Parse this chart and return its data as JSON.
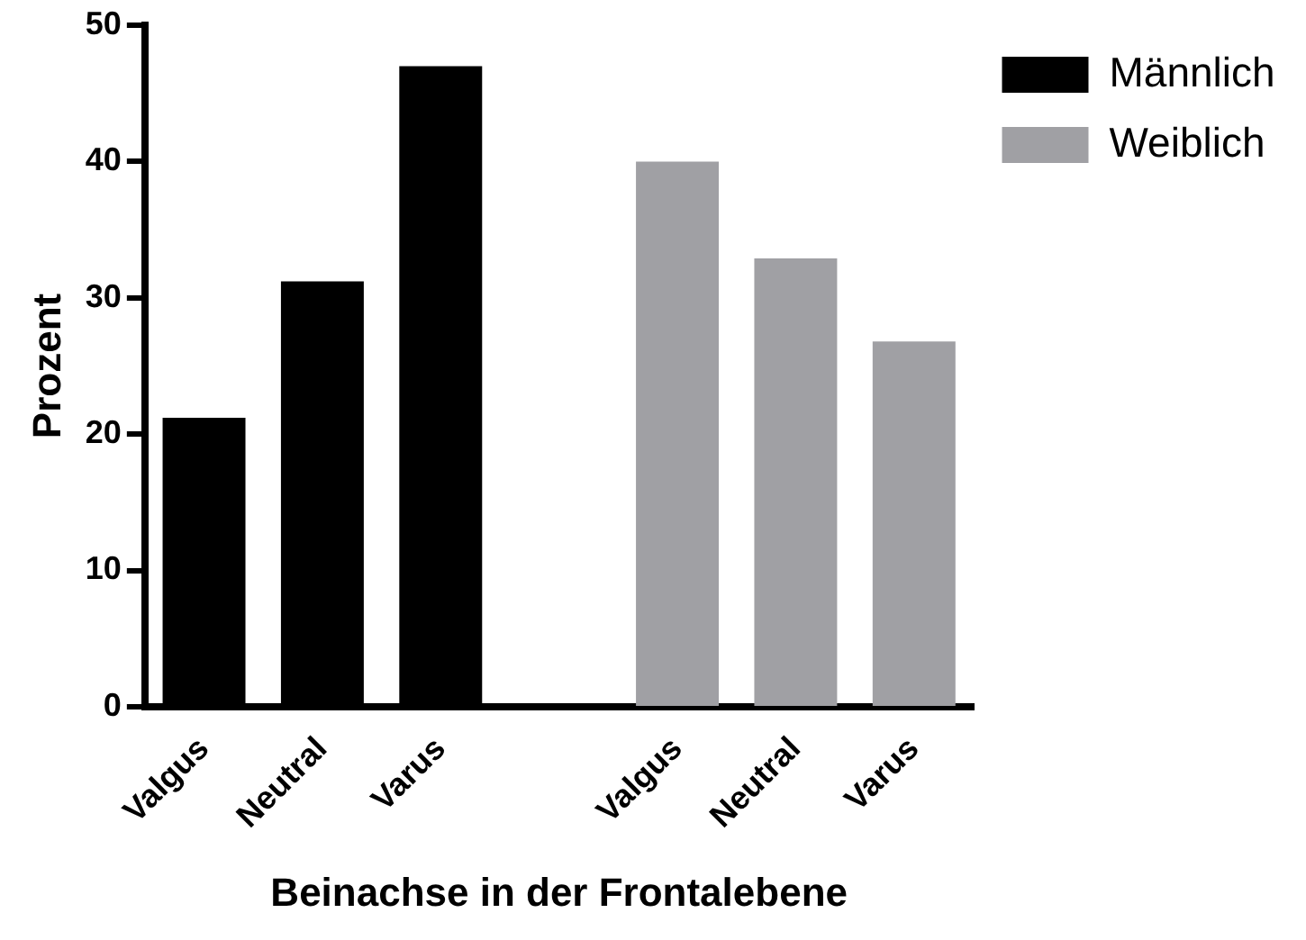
{
  "chart_data": {
    "type": "bar",
    "xlabel": "Beinachse in der Frontalebene",
    "ylabel": "Prozent",
    "categories": [
      "Valgus",
      "Neutral",
      "Varus",
      null,
      "Valgus",
      "Neutral",
      "Varus"
    ],
    "series": [
      {
        "name": "Männlich",
        "color": "#000000",
        "values": [
          21.2,
          31.2,
          47.0,
          null,
          null,
          null,
          null
        ]
      },
      {
        "name": "Weiblich",
        "color": "#a0a0a4",
        "values": [
          null,
          null,
          null,
          null,
          40,
          32.9,
          26.8
        ]
      }
    ],
    "ylim": [
      0,
      50
    ],
    "yticks": [
      0,
      10,
      20,
      30,
      40,
      50
    ],
    "grid": false,
    "legend": "top right"
  }
}
